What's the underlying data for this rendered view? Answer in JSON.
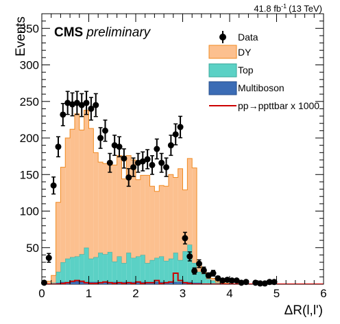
{
  "chart_data": {
    "type": "bar",
    "stacked": true,
    "x_axis": {
      "label": "ΔR(l,l')",
      "range": [
        0,
        6
      ],
      "ticks": [
        "0",
        "1",
        "2",
        "3",
        "4",
        "5",
        "6"
      ],
      "bin_width": 0.1
    },
    "y_axis": {
      "label": "Events",
      "range": [
        0,
        370
      ],
      "ticks": [
        "50",
        "100",
        "150",
        "200",
        "250",
        "300",
        "350"
      ]
    },
    "luminosity": {
      "value": "41.8 fb",
      "exponent": "-1",
      "energy": "(13 TeV)"
    },
    "experiment": {
      "name": "CMS",
      "status": "preliminary"
    },
    "legend": {
      "position": "top-right",
      "entries": [
        {
          "label": "Data",
          "style": "marker",
          "color": "#000000"
        },
        {
          "label": "DY",
          "style": "fill",
          "color": "#fcc08f",
          "edge": "#f08a22"
        },
        {
          "label": "Top",
          "style": "fill",
          "color": "#5bd1c5",
          "edge": "#3aa79a"
        },
        {
          "label": "Multiboson",
          "style": "fill",
          "color": "#3b6cb5",
          "edge": "#264c8a"
        },
        {
          "label": "pp→ppttbar x 1000",
          "style": "line",
          "color": "#cc0000"
        }
      ]
    },
    "bin_edges_start": [
      0.0,
      0.1,
      0.2,
      0.3,
      0.4,
      0.5,
      0.6,
      0.7,
      0.8,
      0.9,
      1.0,
      1.1,
      1.2,
      1.3,
      1.4,
      1.5,
      1.6,
      1.7,
      1.8,
      1.9,
      2.0,
      2.1,
      2.2,
      2.3,
      2.4,
      2.5,
      2.6,
      2.7,
      2.8,
      2.9,
      3.0,
      3.1,
      3.2,
      3.3,
      3.4,
      3.5,
      3.6,
      3.7,
      3.8,
      3.9,
      4.0,
      4.1,
      4.2,
      4.3,
      4.4,
      4.5,
      4.6,
      4.7,
      4.8,
      4.9,
      5.0,
      5.1,
      5.2,
      5.3,
      5.4,
      5.5,
      5.6,
      5.7,
      5.8,
      5.9
    ],
    "series": [
      {
        "name": "Multiboson",
        "values": [
          0,
          0,
          0,
          2,
          3,
          3,
          3,
          4,
          3,
          3,
          3,
          3,
          3,
          3,
          3,
          3,
          3,
          3,
          3,
          3,
          3,
          3,
          3,
          3,
          3,
          3,
          3,
          3,
          3,
          3,
          3,
          3,
          2,
          2,
          1,
          1,
          1,
          0,
          0,
          0,
          0,
          0,
          0,
          0,
          0,
          0,
          0,
          0,
          0,
          0,
          0,
          0,
          0,
          0,
          0,
          0,
          0,
          0,
          0,
          0
        ]
      },
      {
        "name": "Top",
        "values": [
          0,
          1,
          2,
          15,
          27,
          32,
          34,
          34,
          38,
          47,
          32,
          34,
          40,
          38,
          41,
          28,
          35,
          26,
          40,
          33,
          35,
          37,
          26,
          30,
          33,
          35,
          29,
          32,
          40,
          30,
          42,
          51,
          27,
          15,
          13,
          6,
          4,
          2,
          1,
          1,
          0,
          0,
          0,
          0,
          0,
          0,
          0,
          0,
          0,
          0,
          0,
          0,
          0,
          0,
          0,
          0,
          0,
          0,
          0,
          0
        ]
      },
      {
        "name": "DY",
        "values": [
          0,
          3,
          10,
          95,
          130,
          165,
          175,
          195,
          170,
          188,
          178,
          143,
          124,
          124,
          121,
          132,
          138,
          115,
          133,
          134,
          105,
          109,
          120,
          101,
          91,
          97,
          102,
          115,
          103,
          125,
          84,
          118,
          130,
          13,
          6,
          5,
          3,
          1,
          1,
          0,
          0,
          0,
          0,
          0,
          0,
          0,
          0,
          0,
          0,
          0,
          0,
          0,
          0,
          0,
          0,
          0,
          0,
          0,
          0,
          0
        ]
      },
      {
        "name": "pp→ppttbar x 1000",
        "values": [
          0,
          0,
          0,
          0,
          1,
          2,
          4,
          5,
          4,
          2,
          1,
          1,
          2,
          3,
          2,
          1,
          2,
          1,
          2,
          1,
          3,
          1,
          2,
          2,
          5,
          1,
          2,
          3,
          15,
          5,
          2,
          1,
          0,
          0,
          0,
          0,
          0,
          0,
          0,
          0,
          0,
          0,
          0,
          0,
          0,
          0,
          0,
          0,
          0,
          0,
          0,
          0,
          0,
          0,
          0,
          0,
          0,
          0,
          0,
          0
        ]
      }
    ],
    "data_points": {
      "name": "Data",
      "x": [
        0.05,
        0.15,
        0.25,
        0.35,
        0.45,
        0.55,
        0.65,
        0.75,
        0.85,
        0.95,
        1.05,
        1.15,
        1.25,
        1.35,
        1.45,
        1.55,
        1.65,
        1.75,
        1.85,
        1.95,
        2.05,
        2.15,
        2.25,
        2.35,
        2.45,
        2.55,
        2.65,
        2.75,
        2.85,
        2.95,
        3.05,
        3.15,
        3.25,
        3.35,
        3.45,
        3.55,
        3.65,
        3.75,
        3.85,
        3.95,
        4.05,
        4.15,
        4.25,
        4.35,
        4.55,
        4.65,
        4.75,
        4.85,
        4.95
      ],
      "y": [
        2,
        36,
        135,
        188,
        232,
        248,
        246,
        248,
        245,
        248,
        240,
        245,
        200,
        210,
        166,
        190,
        188,
        172,
        146,
        160,
        166,
        168,
        171,
        163,
        185,
        166,
        160,
        190,
        205,
        215,
        63,
        38,
        18,
        28,
        19,
        12,
        15,
        8,
        5,
        6,
        5,
        5,
        2,
        3,
        2,
        1,
        1,
        3,
        3
      ]
    }
  }
}
